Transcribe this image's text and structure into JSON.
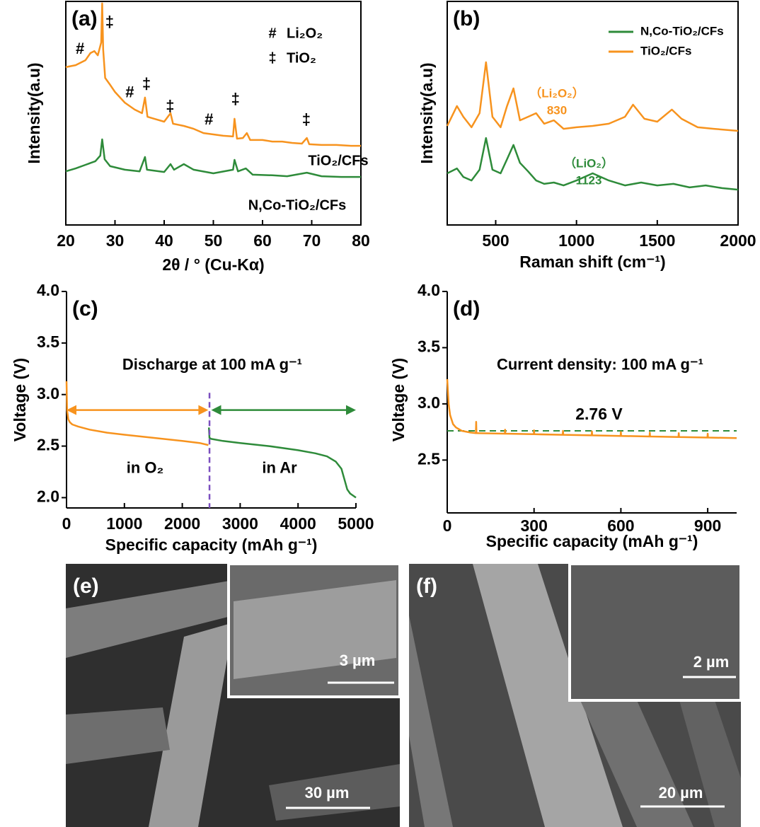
{
  "chart_data": [
    {
      "type": "line",
      "label": "(a)",
      "xlabel": "2θ / ° (Cu-Kα)",
      "ylabel": "Intensity(a.u)",
      "xlim": [
        20,
        80
      ],
      "xticks": [
        20,
        30,
        40,
        50,
        60,
        70,
        80
      ],
      "ylim": [
        0,
        100
      ],
      "series": [
        {
          "name": "TiO₂/CFs",
          "color": "#f7931e",
          "x": [
            20,
            22,
            24,
            25,
            25.8,
            26.5,
            27.2,
            27.4,
            27.6,
            28,
            29,
            30,
            32,
            34,
            35.5,
            36.1,
            36.6,
            38,
            40,
            41.3,
            41.8,
            44,
            46,
            48,
            50,
            52,
            54,
            54.3,
            54.8,
            56,
            56.8,
            57.5,
            60,
            62,
            64,
            66,
            68,
            69,
            69.5,
            72,
            75,
            78,
            80
          ],
          "values": [
            70.6,
            71.5,
            73.7,
            76.9,
            77.8,
            75.9,
            81.6,
            99.1,
            78.5,
            65.8,
            62.7,
            59.5,
            54.7,
            51.6,
            50,
            57,
            48.4,
            47.5,
            46.2,
            50,
            45.3,
            44.3,
            43,
            41.1,
            40.5,
            39.9,
            39.6,
            47.5,
            38.6,
            38.9,
            41.1,
            38,
            38,
            37.3,
            37.3,
            36.7,
            36.4,
            38.9,
            36.1,
            35.8,
            35.8,
            35.4,
            35.4
          ]
        },
        {
          "name": "N,Co-TiO₂/CFs",
          "color": "#2e8b3a",
          "x": [
            20,
            22,
            24,
            26,
            27,
            27.4,
            27.9,
            29,
            32,
            35,
            36.1,
            36.5,
            40,
            41.3,
            42,
            44,
            46,
            50,
            54,
            54.3,
            55,
            56.6,
            58,
            62,
            65,
            69,
            72,
            76,
            80
          ],
          "values": [
            24,
            25.3,
            26.9,
            28.5,
            31,
            38.3,
            29.4,
            26.3,
            24.7,
            24,
            30.4,
            24.7,
            23.7,
            27.2,
            24.7,
            27.2,
            24.7,
            23.1,
            24.7,
            29.1,
            24,
            25.3,
            22.5,
            22.2,
            21.8,
            23.4,
            21.8,
            21.5,
            21.5
          ]
        }
      ],
      "marker_legend": [
        {
          "symbol": "#",
          "label": "Li₂O₂"
        },
        {
          "symbol": "‡",
          "label": "TiO₂"
        }
      ],
      "annotations": [
        {
          "text": "#",
          "x": 22.9,
          "y": 78.5
        },
        {
          "text": "‡",
          "x": 28.9,
          "y": 90.5
        },
        {
          "text": "#",
          "x": 33,
          "y": 59
        },
        {
          "text": "‡",
          "x": 36.4,
          "y": 62.7
        },
        {
          "text": "‡",
          "x": 41.2,
          "y": 52.8
        },
        {
          "text": "#",
          "x": 49.1,
          "y": 46.8
        },
        {
          "text": "‡",
          "x": 54.5,
          "y": 56
        },
        {
          "text": "‡",
          "x": 68.9,
          "y": 46.8
        }
      ]
    },
    {
      "type": "line",
      "label": "(b)",
      "xlabel": "Raman shift (cm⁻¹)",
      "ylabel": "Intensity(a.u)",
      "xlim": [
        200,
        2000
      ],
      "xticks": [
        500,
        1000,
        1500,
        2000
      ],
      "ylim": [
        0,
        100
      ],
      "series": [
        {
          "name": "N,Co-TiO₂/CFs",
          "color": "#2e8b3a",
          "x": [
            200,
            260,
            300,
            350,
            400,
            440,
            480,
            530,
            570,
            610,
            650,
            700,
            750,
            800,
            860,
            920,
            1000,
            1100,
            1200,
            1300,
            1400,
            1500,
            1600,
            1700,
            1800,
            1900,
            2000
          ],
          "values": [
            23.1,
            25.3,
            21.5,
            19.9,
            24.7,
            38.9,
            24.7,
            23.1,
            29.4,
            35.8,
            27.8,
            24,
            19.9,
            18.4,
            19,
            17.7,
            19.9,
            23.1,
            19.9,
            17.7,
            19,
            17.7,
            18.4,
            16.8,
            17.7,
            16.5,
            15.8
          ]
        },
        {
          "name": "TiO₂/CFs",
          "color": "#f7931e",
          "x": [
            200,
            260,
            300,
            350,
            400,
            440,
            480,
            530,
            570,
            610,
            650,
            700,
            750,
            800,
            860,
            920,
            1000,
            1100,
            1200,
            1300,
            1350,
            1420,
            1500,
            1590,
            1650,
            1750,
            1850,
            2000
          ],
          "values": [
            44.3,
            53.2,
            48.4,
            43.7,
            50,
            72.8,
            48.4,
            43.7,
            53.2,
            61.1,
            46.8,
            48.4,
            50,
            45.3,
            46.8,
            43,
            43.7,
            44.3,
            45.3,
            48.4,
            53.8,
            47.5,
            46.2,
            51.6,
            47.5,
            43.7,
            43,
            42.1
          ]
        }
      ],
      "annotations": [
        {
          "text": "（Li₂O₂）",
          "x": 879,
          "y": 58.5,
          "color": "#f7931e"
        },
        {
          "text": "830",
          "x": 879,
          "y": 51,
          "color": "#f7931e"
        },
        {
          "text": "（LiO₂）",
          "x": 1076,
          "y": 27.2,
          "color": "#2e8b3a"
        },
        {
          "text": "1123",
          "x": 1076,
          "y": 19.6,
          "color": "#2e8b3a"
        }
      ]
    },
    {
      "type": "line",
      "label": "(c)",
      "xlabel": "Specific capacity (mAh g⁻¹)",
      "ylabel": "Voltage (V)",
      "xlim": [
        0,
        5000
      ],
      "xticks": [
        0,
        1000,
        2000,
        3000,
        4000,
        5000
      ],
      "ylim": [
        1.9,
        4.0
      ],
      "yticks": [
        {
          "value": 2,
          "label": "2.0"
        },
        2.5,
        {
          "value": 3,
          "label": "3.0"
        },
        3.5,
        {
          "value": 4,
          "label": "4.0"
        }
      ],
      "series": [
        {
          "color": "#f7931e",
          "x": [
            0,
            10,
            30,
            60,
            100,
            200,
            400,
            700,
            1000,
            1500,
            2000,
            2300,
            2450
          ],
          "values": [
            3.13,
            2.85,
            2.76,
            2.73,
            2.71,
            2.69,
            2.66,
            2.63,
            2.61,
            2.58,
            2.55,
            2.53,
            2.51
          ]
        },
        {
          "color": "#2e8b3a",
          "x": [
            2460,
            2470,
            2500,
            2700,
            3000,
            3500,
            4000,
            4300,
            4500,
            4650,
            4750,
            4800,
            4850,
            4900,
            4950,
            5000
          ],
          "values": [
            2.68,
            2.58,
            2.57,
            2.55,
            2.53,
            2.5,
            2.46,
            2.43,
            2.4,
            2.35,
            2.28,
            2.18,
            2.08,
            2.04,
            2.02,
            2.0
          ]
        }
      ],
      "arrows": [
        {
          "from": 0,
          "to": 2450,
          "y": 2.85,
          "color": "#f7931e"
        },
        {
          "from": 2500,
          "to": 5000,
          "y": 2.85,
          "color": "#2e8b3a"
        }
      ],
      "divider_x": 2470,
      "divider_color": "#7b4fbf",
      "annotations": [
        {
          "text": "Discharge at  100 mA g⁻¹",
          "x": 2518,
          "y": 3.28
        },
        {
          "text": "in O₂",
          "x": 1357,
          "y": 2.28
        },
        {
          "text": "in Ar",
          "x": 3680,
          "y": 2.28
        }
      ]
    },
    {
      "type": "line",
      "label": "(d)",
      "xlabel": "Specific capacity (mAh g⁻¹)",
      "ylabel": "Voltage (V)",
      "xlim": [
        0,
        1000
      ],
      "xticks": [
        0,
        300,
        600,
        900
      ],
      "ylim": [
        2.03,
        4.0
      ],
      "yticks": [
        2.5,
        {
          "value": 3,
          "label": "3.0"
        },
        3.5,
        {
          "value": 4,
          "label": "4.0"
        }
      ],
      "series": [
        {
          "color": "#f7931e",
          "x": [
            0,
            5,
            10,
            20,
            30,
            50,
            80,
            99,
            100,
            101,
            199,
            200,
            201,
            299,
            300,
            301,
            399,
            400,
            401,
            499,
            500,
            501,
            599,
            600,
            601,
            699,
            700,
            701,
            799,
            800,
            801,
            899,
            900,
            901,
            1000
          ],
          "values": [
            3.22,
            3.0,
            2.9,
            2.82,
            2.79,
            2.76,
            2.745,
            2.74,
            2.84,
            2.74,
            2.735,
            2.77,
            2.735,
            2.73,
            2.765,
            2.73,
            2.725,
            2.76,
            2.725,
            2.72,
            2.755,
            2.72,
            2.715,
            2.75,
            2.715,
            2.71,
            2.745,
            2.71,
            2.705,
            2.74,
            2.705,
            2.7,
            2.735,
            2.7,
            2.695
          ]
        }
      ],
      "reference": {
        "value": 2.76,
        "label": "2.76 V",
        "color": "#2e8b3a"
      },
      "annotations": [
        {
          "text": "Current density: 100 mA g⁻¹",
          "x": 528,
          "y": 3.34
        }
      ]
    }
  ],
  "images": [
    {
      "label": "(e)",
      "inset_scale": "3 µm",
      "scale": "30 µm"
    },
    {
      "label": "(f)",
      "inset_scale": "2 µm",
      "scale": "20 µm"
    }
  ]
}
